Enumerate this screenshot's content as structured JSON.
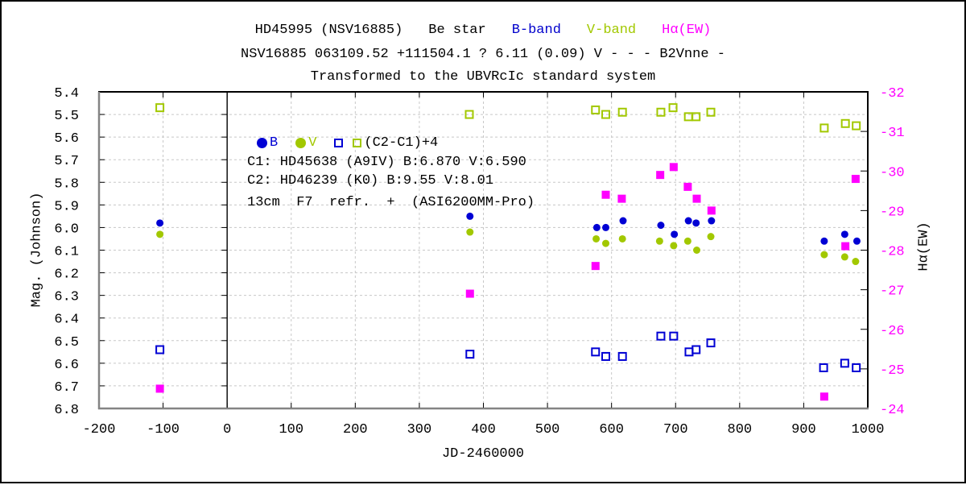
{
  "figure": {
    "title_line1_segments": [
      {
        "text": "HD45995 (NSV16885)",
        "color": "#000000"
      },
      {
        "text": "Be star",
        "color": "#000000"
      },
      {
        "text": "B-band",
        "color": "#0000cc"
      },
      {
        "text": "V-band",
        "color": "#a2c800"
      },
      {
        "text": "Hα(EW)",
        "color": "#ff00ff"
      }
    ],
    "title_line2": "NSV16885 063109.52 +111504.1 ? 6.11 (0.09) V - - - B2Vnne -",
    "title_line3": "Transformed to the UBVRcIc standard system"
  },
  "legend": {
    "b_label": "B",
    "v_label": "V",
    "pair_label": "(C2-C1)+4",
    "line2": "C1: HD45638 (A9IV) B:6.870 V:6.590",
    "line3": "C2: HD46239 (K0) B:9.55 V:8.01",
    "line4": "13cm  F7  refr.  +  (ASI6200MM-Pro)"
  },
  "colors": {
    "blue": "#0000d4",
    "green": "#a2c800",
    "magenta": "#ff00ff",
    "grid": "#c8c8c8",
    "axis_gray": "#848484",
    "axis_black": "#000000",
    "text": "#000000"
  },
  "chart_data": {
    "type": "scatter",
    "title": "HD45995 (NSV16885) Be star",
    "xlabel": "JD-2460000",
    "ylabel_left": "Mag. (Johnson)",
    "ylabel_right": "Hα(EW)",
    "xlim": [
      -200,
      1000
    ],
    "ylim_left": [
      5.4,
      6.8
    ],
    "ylim_left_top_value": 5.4,
    "ylim_right": [
      -32,
      -24
    ],
    "ylim_right_top_value": -32,
    "grid": true,
    "legend_position": "inside-top-left",
    "xticks": [
      -200,
      -100,
      0,
      100,
      200,
      300,
      400,
      500,
      600,
      700,
      800,
      900,
      1000
    ],
    "yticks_left": [
      5.4,
      5.5,
      5.6,
      5.7,
      5.8,
      5.9,
      6.0,
      6.1,
      6.2,
      6.3,
      6.4,
      6.5,
      6.6,
      6.7,
      6.8
    ],
    "yticks_right": [
      -32,
      -31,
      -30,
      -29,
      -28,
      -27,
      -26,
      -25,
      -24
    ],
    "zero_axis_x": 0,
    "series": [
      {
        "key": "b-band",
        "name": "B",
        "marker": "filled-circle",
        "color": "#0000d4",
        "axis": "left",
        "points": [
          [
            -105,
            5.98
          ],
          [
            379,
            5.95
          ],
          [
            577,
            6.0
          ],
          [
            591,
            6.0
          ],
          [
            618,
            5.97
          ],
          [
            677,
            5.99
          ],
          [
            698,
            6.03
          ],
          [
            720,
            5.97
          ],
          [
            732,
            5.98
          ],
          [
            756,
            5.97
          ],
          [
            932,
            6.06
          ],
          [
            964,
            6.03
          ],
          [
            983,
            6.06
          ]
        ]
      },
      {
        "key": "v-band",
        "name": "V",
        "marker": "filled-circle",
        "color": "#a2c800",
        "axis": "left",
        "points": [
          [
            -105,
            6.03
          ],
          [
            379,
            6.02
          ],
          [
            576,
            6.05
          ],
          [
            591,
            6.07
          ],
          [
            617,
            6.05
          ],
          [
            675,
            6.06
          ],
          [
            697,
            6.08
          ],
          [
            719,
            6.06
          ],
          [
            733,
            6.1
          ],
          [
            755,
            6.04
          ],
          [
            932,
            6.12
          ],
          [
            964,
            6.13
          ],
          [
            981,
            6.15
          ]
        ]
      },
      {
        "key": "c2c1-b",
        "name": "(C2-C1)+4 B",
        "marker": "open-square",
        "color": "#0000d4",
        "axis": "left",
        "points": [
          [
            -105,
            6.54
          ],
          [
            379,
            6.56
          ],
          [
            575,
            6.55
          ],
          [
            591,
            6.57
          ],
          [
            617,
            6.57
          ],
          [
            677,
            6.48
          ],
          [
            697,
            6.48
          ],
          [
            721,
            6.55
          ],
          [
            732,
            6.54
          ],
          [
            755,
            6.51
          ],
          [
            931,
            6.62
          ],
          [
            964,
            6.6
          ],
          [
            982,
            6.62
          ]
        ]
      },
      {
        "key": "c2c1-v",
        "name": "(C2-C1)+4 V",
        "marker": "open-square",
        "color": "#a2c800",
        "axis": "left",
        "points": [
          [
            -105,
            5.47
          ],
          [
            378,
            5.5
          ],
          [
            575,
            5.48
          ],
          [
            591,
            5.5
          ],
          [
            617,
            5.49
          ],
          [
            677,
            5.49
          ],
          [
            696,
            5.47
          ],
          [
            720,
            5.51
          ],
          [
            732,
            5.51
          ],
          [
            755,
            5.49
          ],
          [
            932,
            5.56
          ],
          [
            965,
            5.54
          ],
          [
            982,
            5.55
          ]
        ]
      },
      {
        "key": "halpha-ew",
        "name": "Hα(EW)",
        "marker": "filled-square",
        "color": "#ff00ff",
        "axis": "right",
        "points": [
          [
            -105,
            -24.5
          ],
          [
            379,
            -26.9
          ],
          [
            575,
            -27.6
          ],
          [
            591,
            -29.4
          ],
          [
            616,
            -29.3
          ],
          [
            676,
            -29.9
          ],
          [
            697,
            -30.1
          ],
          [
            719,
            -29.6
          ],
          [
            733,
            -29.3
          ],
          [
            756,
            -29.0
          ],
          [
            932,
            -24.3
          ],
          [
            965,
            -28.1
          ],
          [
            981,
            -29.8
          ]
        ]
      }
    ]
  }
}
